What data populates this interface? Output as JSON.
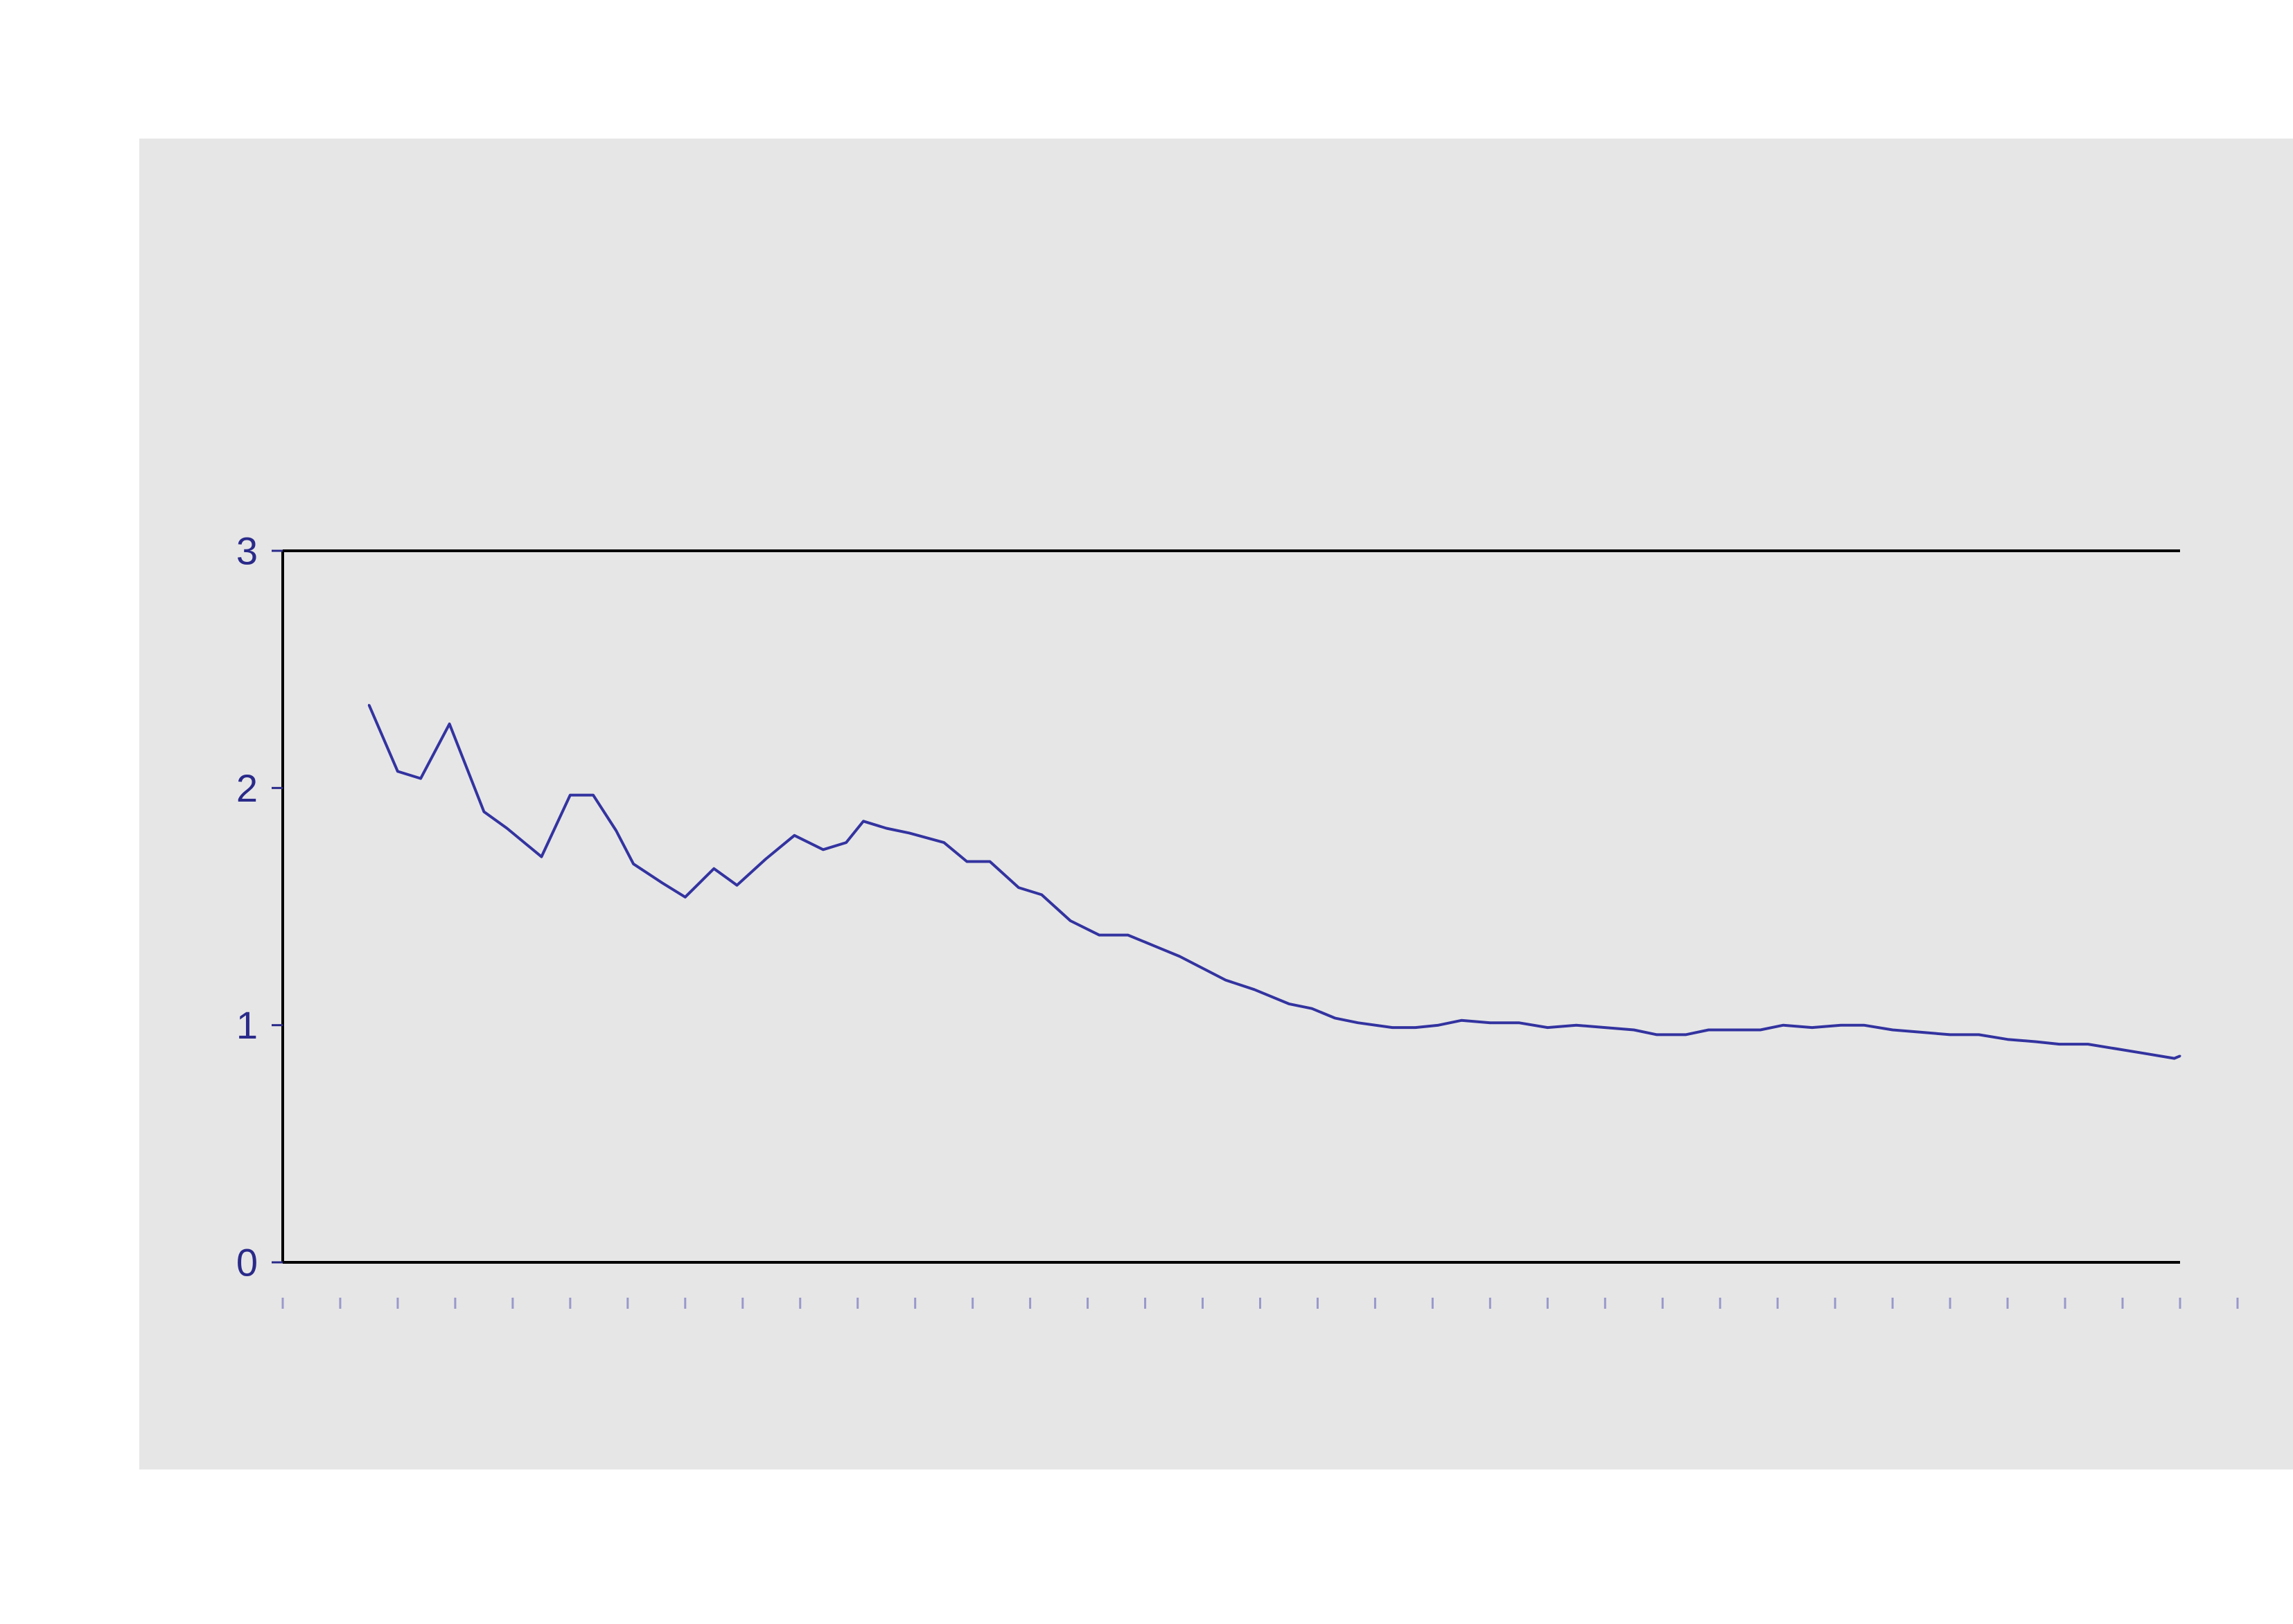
{
  "chart_data": {
    "type": "line",
    "title": "",
    "xlabel": "",
    "ylabel": "",
    "ylim": [
      0,
      3
    ],
    "yticks": [
      "0",
      "1",
      "2",
      "3"
    ],
    "x_tick_count": 35,
    "grid": false,
    "legend": "none",
    "colors": {
      "background": "#ffffff",
      "panel": "#e6e6e6",
      "axis": "#000000",
      "line": "#3333a0",
      "tick_label": "#2a2a8a",
      "x_tick": "#9999cc"
    },
    "series": [
      {
        "x": [
          1.5,
          2.0,
          2.4,
          2.9,
          3.5,
          3.9,
          4.5,
          5.0,
          5.4,
          5.8,
          6.1,
          6.6,
          7.0,
          7.5,
          7.9,
          8.4,
          8.9,
          9.4,
          9.8,
          10.1,
          10.5,
          10.9,
          11.5,
          11.9,
          12.3,
          12.8,
          13.2,
          13.7,
          14.2,
          14.7,
          15.2,
          15.6,
          16.0,
          16.4,
          16.9,
          17.5,
          17.9,
          18.3,
          18.7,
          19.3,
          19.7,
          20.1,
          20.5,
          21.0,
          21.5,
          22.0,
          22.5,
          23.0,
          23.5,
          23.9,
          24.4,
          24.8,
          25.3,
          25.7,
          26.1,
          26.6,
          27.1,
          27.5,
          28.0,
          28.5,
          29.0,
          29.5,
          30.0,
          30.5,
          30.9,
          31.4,
          31.9,
          32.4,
          32.9,
          33.0
        ],
        "values": [
          2.35,
          2.07,
          2.04,
          2.27,
          1.9,
          1.83,
          1.71,
          1.97,
          1.97,
          1.82,
          1.68,
          1.6,
          1.54,
          1.66,
          1.59,
          1.7,
          1.8,
          1.74,
          1.77,
          1.86,
          1.83,
          1.81,
          1.77,
          1.69,
          1.69,
          1.58,
          1.55,
          1.44,
          1.38,
          1.38,
          1.33,
          1.29,
          1.24,
          1.19,
          1.15,
          1.09,
          1.07,
          1.03,
          1.01,
          0.99,
          0.99,
          1.0,
          1.02,
          1.01,
          1.01,
          0.99,
          1.0,
          0.99,
          0.98,
          0.96,
          0.96,
          0.98,
          0.98,
          0.98,
          1.0,
          0.99,
          1.0,
          1.0,
          0.98,
          0.97,
          0.96,
          0.96,
          0.94,
          0.93,
          0.92,
          0.92,
          0.9,
          0.88,
          0.86,
          0.87
        ]
      }
    ]
  }
}
